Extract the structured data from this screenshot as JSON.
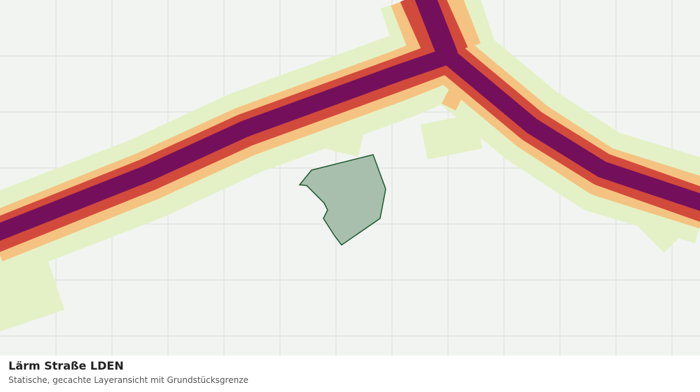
{
  "caption": {
    "title": "Lärm Straße LDEN",
    "subtitle": "Statische, gecachte Layeransicht mit Grundstücksgrenze"
  }
}
